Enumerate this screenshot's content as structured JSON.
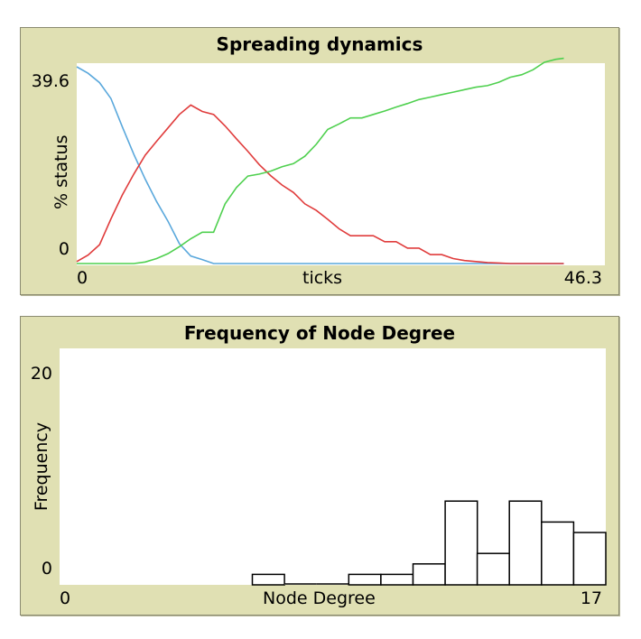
{
  "chart_data": [
    {
      "type": "line",
      "title": "Spreading dynamics",
      "xlabel": "ticks",
      "ylabel": "% status",
      "xlim": [
        0,
        46.3
      ],
      "ylim": [
        0,
        39.6
      ],
      "x_min_label": "0",
      "x_max_label": "46.3",
      "y_min_label": "0",
      "y_max_label": "39.6",
      "series": [
        {
          "name": "blue",
          "color": "#5aa8dc",
          "x": [
            0,
            1,
            2,
            3,
            4,
            5,
            6,
            7,
            8,
            9,
            10,
            11,
            12,
            13,
            15,
            20,
            30,
            40,
            42.7
          ],
          "y": [
            39.6,
            38.3,
            36.4,
            33.2,
            27.5,
            22.0,
            17.0,
            12.5,
            8.5,
            4.0,
            1.5,
            0.8,
            0,
            0,
            0,
            0,
            0,
            0,
            0
          ]
        },
        {
          "name": "red",
          "color": "#e03c3c",
          "x": [
            0,
            1,
            2,
            3,
            4,
            5,
            6,
            7,
            8,
            9,
            10,
            11,
            12,
            13,
            14,
            15,
            16,
            17,
            18,
            19,
            20,
            21,
            22,
            23,
            24,
            25,
            26,
            27,
            28,
            29,
            30,
            31,
            32,
            33,
            34,
            35,
            36,
            37,
            38,
            39,
            40,
            41,
            42,
            42.7
          ],
          "y": [
            0.4,
            1.7,
            3.8,
            9.0,
            13.8,
            18.0,
            21.8,
            24.6,
            27.3,
            30.0,
            31.9,
            30.6,
            30.0,
            27.7,
            25.1,
            22.6,
            19.9,
            17.7,
            15.8,
            14.3,
            12.0,
            10.7,
            8.9,
            7.0,
            5.6,
            5.6,
            5.6,
            4.4,
            4.4,
            3.1,
            3.1,
            1.8,
            1.8,
            1.0,
            0.6,
            0.4,
            0.2,
            0.1,
            0,
            0,
            0,
            0,
            0,
            0
          ]
        },
        {
          "name": "green",
          "color": "#4fd04f",
          "x": [
            0,
            1,
            2,
            3,
            4,
            5,
            6,
            7,
            8,
            9,
            10,
            11,
            12,
            13,
            14,
            15,
            16,
            17,
            18,
            19,
            20,
            21,
            22,
            23,
            24,
            25,
            26,
            27,
            28,
            29,
            30,
            31,
            32,
            33,
            34,
            35,
            36,
            37,
            38,
            39,
            40,
            41,
            42,
            42.7
          ],
          "y": [
            0,
            0,
            0,
            0,
            0,
            0,
            0.3,
            1.0,
            2.0,
            3.4,
            5.0,
            6.3,
            6.3,
            12.0,
            15.3,
            17.6,
            18.0,
            18.6,
            19.5,
            20.1,
            21.6,
            24.0,
            27.0,
            28.1,
            29.3,
            29.3,
            30.0,
            30.7,
            31.5,
            32.2,
            33.0,
            33.5,
            34.0,
            34.5,
            35.0,
            35.5,
            35.8,
            36.5,
            37.5,
            38.0,
            39.0,
            40.5,
            41.1,
            41.3
          ]
        }
      ]
    },
    {
      "type": "bar",
      "title": "Frequency of Node Degree",
      "xlabel": "Node Degree",
      "ylabel": "Frequency",
      "xlim": [
        0,
        17
      ],
      "ylim": [
        0,
        20
      ],
      "x_min_label": "0",
      "x_max_label": "17",
      "y_min_label": "0",
      "y_max_label": "20",
      "bin_width": 1,
      "bins": [
        0,
        1,
        2,
        3,
        4,
        5,
        6,
        7,
        8,
        9,
        10,
        11,
        12,
        13,
        14,
        15,
        16
      ],
      "values": [
        0,
        0,
        0,
        0,
        0,
        0,
        1,
        0,
        0,
        1,
        1,
        2,
        8,
        3,
        8,
        6,
        5
      ]
    }
  ]
}
